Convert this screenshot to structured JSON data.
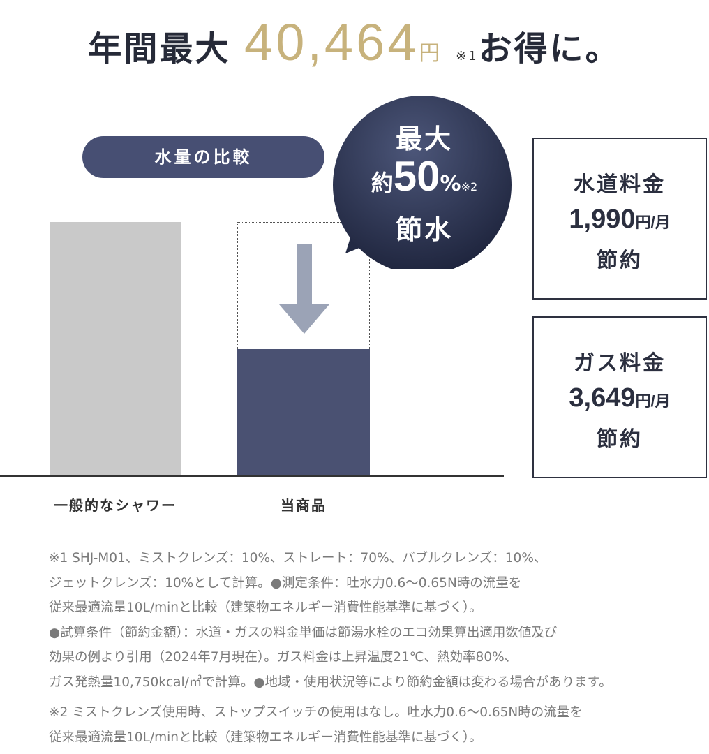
{
  "headline": {
    "prefix": "年間最大",
    "amount": "40,464",
    "unit": "円",
    "note": "※1",
    "suffix": "お得に。"
  },
  "comparison": {
    "pill_label": "水量の比較",
    "bars": [
      {
        "label": "一般的なシャワー",
        "relative_water": 100,
        "color": "#c9c9c9"
      },
      {
        "label": "当商品",
        "relative_water": 50,
        "color": "#4a5172"
      }
    ],
    "arrow_icon": "down-arrow"
  },
  "bubble": {
    "line1": "最大",
    "prefix": "約",
    "value": "50",
    "unit": "%",
    "note": "※2",
    "line3": "節水"
  },
  "savings": [
    {
      "title": "水道料金",
      "amount": "1,990",
      "unit": "円/月",
      "label": "節約"
    },
    {
      "title": "ガス料金",
      "amount": "3,649",
      "unit": "円/月",
      "label": "節約"
    }
  ],
  "notes": [
    "※1 SHJ-M01、ミストクレンズ：10%、ストレート：70%、バブルクレンズ：10%、",
    "ジェットクレンズ：10%として計算。●測定条件：吐水力0.6～0.65N時の流量を",
    "従来最適流量10L/minと比較（建築物エネルギー消費性能基準に基づく）。",
    "●試算条件（節約金額）：水道・ガスの料金単価は節湯水栓のエコ効果算出適用数値及び",
    "効果の例より引用（2024年7月現在）。ガス料金は上昇温度21℃、熱効率80%、",
    "ガス発熱量10,750kcal/㎥で計算。●地域・使用状況等により節約金額は変わる場合があります。",
    "※2 ミストクレンズ使用時、ストップスイッチの使用はなし。吐水力0.6～0.65N時の流量を",
    "従来最適流量10L/minと比較（建築物エネルギー消費性能基準に基づく）。"
  ],
  "colors": {
    "gold": "#c7b27c",
    "navy": "#474f73",
    "gray_bar": "#c9c9c9"
  }
}
